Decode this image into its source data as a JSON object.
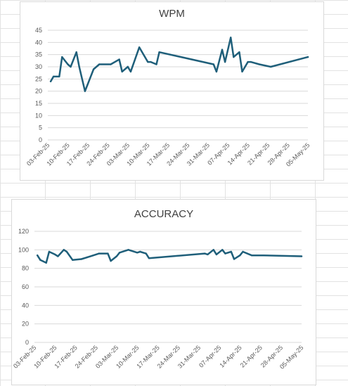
{
  "colors": {
    "series": "#1f5f7a",
    "grid": "#d9d9d9",
    "text": "#595959"
  },
  "chart_data": [
    {
      "type": "line",
      "title": "WPM",
      "ylim": [
        0,
        45
      ],
      "yticks": [
        0,
        5,
        10,
        15,
        20,
        25,
        30,
        35,
        40,
        45
      ],
      "grid": true,
      "xlim": [
        "2025-02-03",
        "2025-05-05"
      ],
      "xtick_labels": [
        "03-Feb-25",
        "10-Feb-25",
        "17-Feb-25",
        "24-Feb-25",
        "03-Mar-25",
        "10-Mar-25",
        "17-Mar-25",
        "24-Mar-25",
        "31-Mar-25",
        "07-Apr-25",
        "14-Apr-25",
        "21-Apr-25",
        "28-Apr-25",
        "05-May-25"
      ],
      "series": [
        {
          "x": [
            "2025-02-04",
            "2025-02-05",
            "2025-02-07",
            "2025-02-08",
            "2025-02-10",
            "2025-02-11",
            "2025-02-13",
            "2025-02-14",
            "2025-02-16",
            "2025-02-19",
            "2025-02-21",
            "2025-02-25",
            "2025-02-28",
            "2025-03-01",
            "2025-03-03",
            "2025-03-04",
            "2025-03-07",
            "2025-03-10",
            "2025-03-11",
            "2025-03-13",
            "2025-03-14",
            "2025-04-02",
            "2025-04-03",
            "2025-04-05",
            "2025-04-06",
            "2025-04-08",
            "2025-04-09",
            "2025-04-11",
            "2025-04-12",
            "2025-04-14",
            "2025-04-15",
            "2025-04-18",
            "2025-04-22",
            "2025-05-05"
          ],
          "y": [
            24,
            26,
            26,
            34,
            31,
            30,
            36,
            30,
            20,
            29,
            31,
            31,
            33,
            28,
            30,
            28,
            38,
            32,
            32,
            31,
            36,
            31,
            28,
            37,
            32,
            42,
            34,
            36,
            28,
            32,
            32,
            31,
            30,
            34
          ]
        }
      ]
    },
    {
      "type": "line",
      "title": "ACCURACY",
      "ylim": [
        0,
        120
      ],
      "yticks": [
        0,
        20,
        40,
        60,
        80,
        100,
        120
      ],
      "grid": true,
      "xlim": [
        "2025-02-03",
        "2025-05-05"
      ],
      "xtick_labels": [
        "03-Feb-25",
        "10-Feb-25",
        "17-Feb-25",
        "24-Feb-25",
        "03-Mar-25",
        "10-Mar-25",
        "17-Mar-25",
        "24-Mar-25",
        "31-Mar-25",
        "07-Apr-25",
        "14-Apr-25",
        "21-Apr-25",
        "28-Apr-25",
        "05-May-25"
      ],
      "series": [
        {
          "x": [
            "2025-02-04",
            "2025-02-05",
            "2025-02-07",
            "2025-02-08",
            "2025-02-10",
            "2025-02-11",
            "2025-02-13",
            "2025-02-14",
            "2025-02-16",
            "2025-02-19",
            "2025-02-21",
            "2025-02-25",
            "2025-02-28",
            "2025-03-01",
            "2025-03-03",
            "2025-03-04",
            "2025-03-07",
            "2025-03-10",
            "2025-03-11",
            "2025-03-13",
            "2025-03-14",
            "2025-04-02",
            "2025-04-03",
            "2025-04-05",
            "2025-04-06",
            "2025-04-08",
            "2025-04-09",
            "2025-04-11",
            "2025-04-12",
            "2025-04-14",
            "2025-04-15",
            "2025-04-18",
            "2025-04-22",
            "2025-05-05"
          ],
          "y": [
            94,
            89,
            86,
            98,
            95,
            93,
            100,
            98,
            89,
            90,
            92,
            96,
            96,
            88,
            93,
            97,
            100,
            97,
            98,
            96,
            91,
            96,
            95,
            100,
            95,
            100,
            96,
            98,
            90,
            94,
            98,
            94,
            94,
            93
          ]
        }
      ]
    }
  ]
}
